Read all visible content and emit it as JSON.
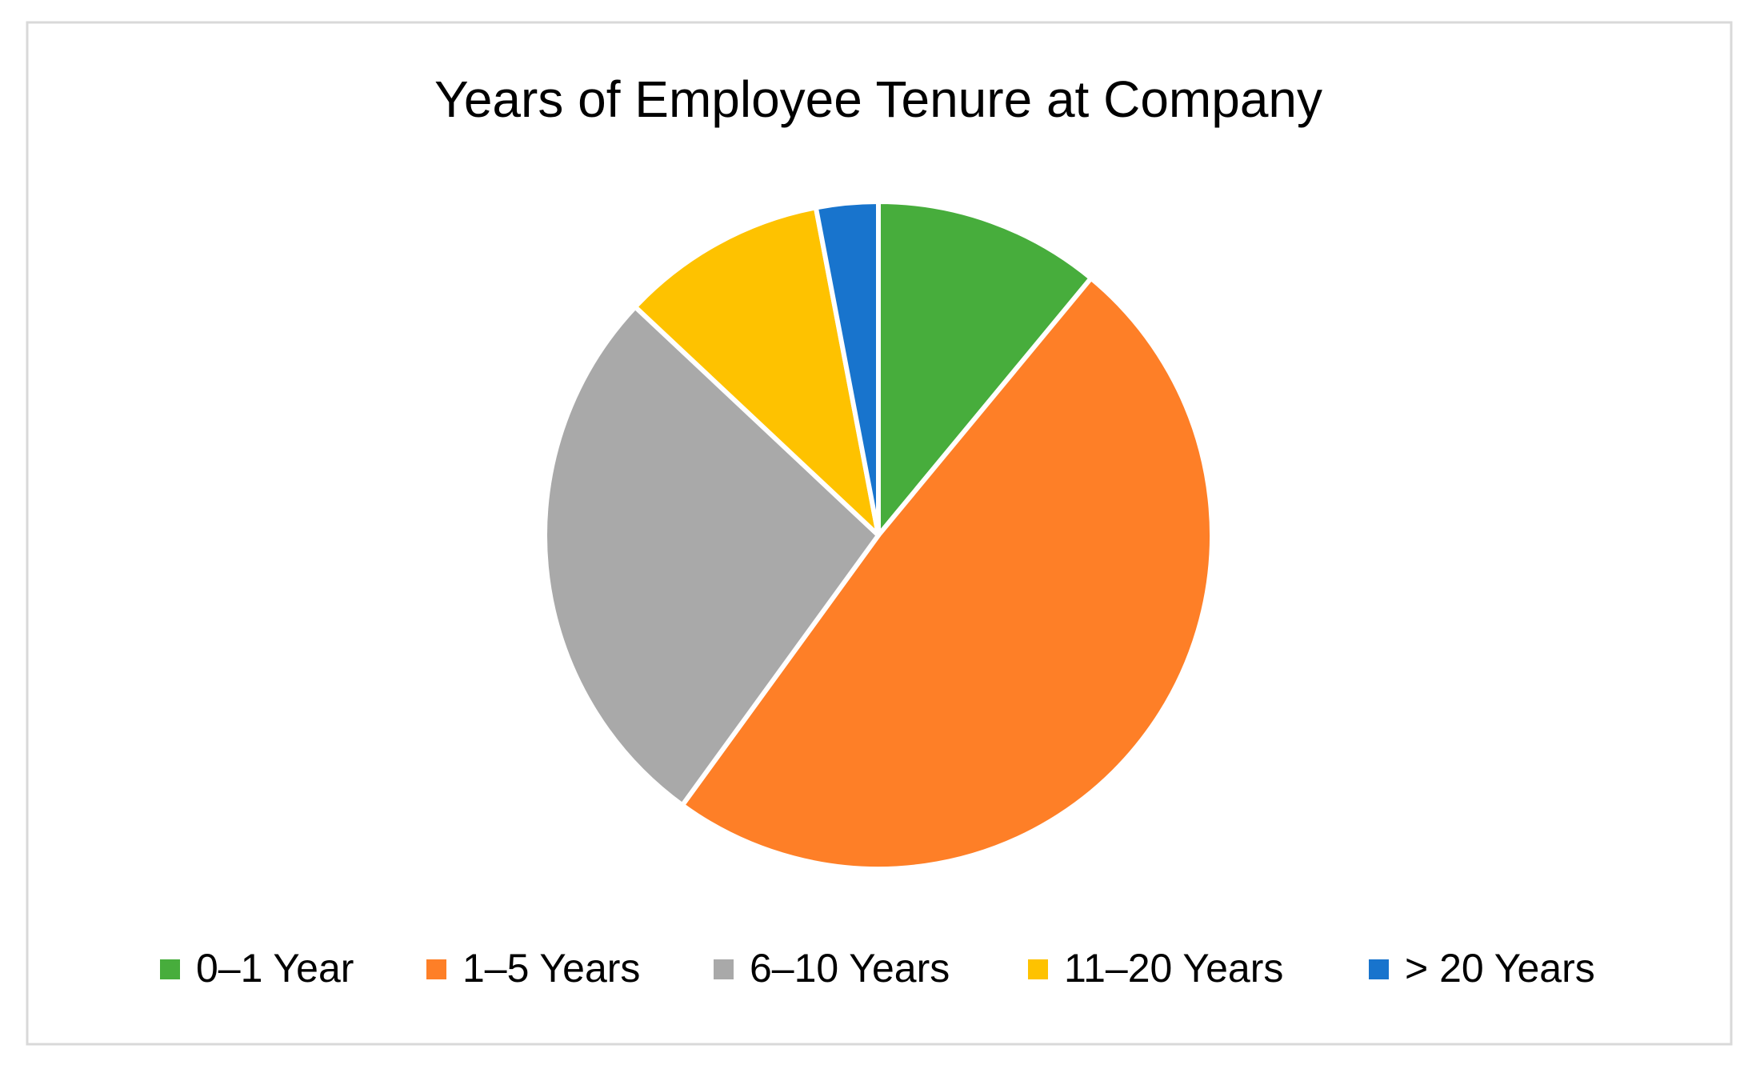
{
  "chart_data": {
    "type": "pie",
    "title": "Years of Employee Tenure at Company",
    "categories": [
      "0–1 Year",
      "1–5 Years",
      "6–10 Years",
      "11–20 Years",
      "> 20 Years"
    ],
    "values": [
      11,
      49,
      27,
      10,
      3
    ],
    "colors": [
      "#47ad3c",
      "#fe7f27",
      "#a9a9a9",
      "#fec200",
      "#1874cd"
    ],
    "legend": "bottom"
  }
}
